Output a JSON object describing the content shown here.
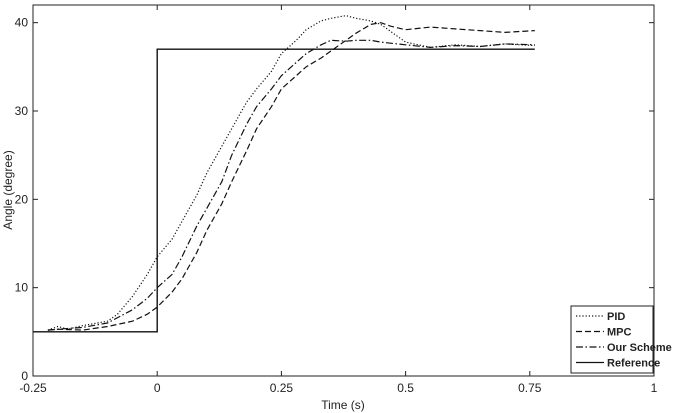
{
  "chart_data": {
    "type": "line",
    "xlabel": "Time (s)",
    "ylabel": "Angle (degree)",
    "xlim": [
      -0.25,
      1
    ],
    "ylim": [
      0,
      42
    ],
    "xticks": [
      -0.25,
      0,
      0.25,
      0.5,
      0.75,
      1
    ],
    "xtick_labels": [
      "-0.25",
      "0",
      "0.25",
      "0.5",
      "0.75",
      "1"
    ],
    "yticks": [
      0,
      10,
      20,
      30,
      40
    ],
    "ytick_labels": [
      "0",
      "10",
      "20",
      "30",
      "40"
    ],
    "grid": false,
    "legend_position": "bottom-right",
    "series": [
      {
        "name": "PID",
        "dash": "dotted",
        "x": [
          -0.22,
          -0.2,
          -0.18,
          -0.15,
          -0.1,
          -0.08,
          -0.05,
          -0.02,
          0.0,
          0.03,
          0.05,
          0.08,
          0.1,
          0.13,
          0.15,
          0.18,
          0.2,
          0.23,
          0.25,
          0.28,
          0.3,
          0.33,
          0.35,
          0.38,
          0.4,
          0.43,
          0.45,
          0.5,
          0.55,
          0.6,
          0.65,
          0.7,
          0.76
        ],
        "y": [
          5.2,
          5.6,
          5.3,
          5.7,
          6.2,
          7.0,
          9.0,
          11.5,
          13.5,
          15.5,
          17.5,
          20.5,
          23,
          26,
          28,
          31,
          32.5,
          34.5,
          36.5,
          38,
          39.2,
          40.2,
          40.5,
          40.8,
          40.5,
          40.2,
          39.8,
          37.8,
          37.2,
          37.5,
          37.3,
          37.6,
          37.4
        ]
      },
      {
        "name": "MPC",
        "dash": "dashed",
        "x": [
          -0.22,
          -0.2,
          -0.15,
          -0.1,
          -0.05,
          -0.02,
          0.0,
          0.03,
          0.05,
          0.08,
          0.1,
          0.13,
          0.15,
          0.18,
          0.2,
          0.23,
          0.25,
          0.28,
          0.3,
          0.33,
          0.35,
          0.38,
          0.4,
          0.43,
          0.45,
          0.47,
          0.5,
          0.55,
          0.6,
          0.65,
          0.7,
          0.76
        ],
        "y": [
          5.2,
          5.3,
          5.2,
          5.6,
          6.2,
          7.0,
          7.8,
          9.5,
          11,
          14,
          16.5,
          19.5,
          22,
          25.5,
          28,
          30.5,
          32.5,
          34,
          35,
          36,
          36.8,
          38,
          38.8,
          39.8,
          40,
          39.6,
          39.2,
          39.5,
          39.3,
          39.1,
          38.9,
          39.1
        ]
      },
      {
        "name": "Our Scheme",
        "dash": "dashdot",
        "x": [
          -0.22,
          -0.2,
          -0.15,
          -0.1,
          -0.05,
          -0.02,
          0.0,
          0.03,
          0.05,
          0.08,
          0.1,
          0.13,
          0.15,
          0.18,
          0.2,
          0.23,
          0.25,
          0.28,
          0.3,
          0.33,
          0.35,
          0.38,
          0.4,
          0.43,
          0.45,
          0.5,
          0.55,
          0.6,
          0.65,
          0.7,
          0.76
        ],
        "y": [
          5.2,
          5.3,
          5.5,
          6.0,
          7.5,
          8.8,
          10,
          11.5,
          13.5,
          17,
          19,
          22,
          25,
          28.5,
          30.5,
          32.5,
          34,
          35.5,
          36.5,
          37.5,
          38,
          37.9,
          38,
          38,
          37.8,
          37.5,
          37.2,
          37.4,
          37.3,
          37.6,
          37.5
        ]
      },
      {
        "name": "Reference",
        "dash": "solid",
        "x": [
          -0.25,
          0.0,
          0.0,
          0.76
        ],
        "y": [
          5,
          5,
          37,
          37
        ]
      }
    ]
  }
}
